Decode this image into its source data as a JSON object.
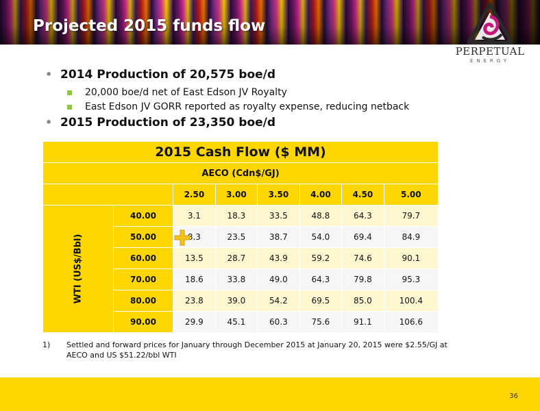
{
  "slide": {
    "title": "Projected 2015 funds flow",
    "page_number": "36",
    "colors": {
      "accent": "#ffd600",
      "bullet_square": "#8ec63f",
      "title_text": "#ffffff"
    }
  },
  "logo": {
    "name": "PERPETUAL",
    "sub": "ENERGY",
    "icon": "triangle-swirl-logo-icon"
  },
  "bullets": [
    {
      "text": "2014 Production of 20,575 boe/d",
      "sub": [
        "20,000 boe/d net of East Edson JV Royalty",
        "East Edson JV GORR reported as royalty expense, reducing netback"
      ]
    },
    {
      "text": "2015 Production of 23,350 boe/d",
      "sub": []
    }
  ],
  "table": {
    "title": "2015 Cash Flow ($ MM)",
    "aeco_label": "AECO (Cdn$/GJ)",
    "wti_label": "WTI (US$/Bbl)",
    "aeco_values": [
      "2.50",
      "3.00",
      "3.50",
      "4.00",
      "4.50",
      "5.00"
    ],
    "rows": [
      {
        "wti": "40.00",
        "values": [
          "3.1",
          "18.3",
          "33.5",
          "48.8",
          "64.3",
          "79.7"
        ]
      },
      {
        "wti": "50.00",
        "values": [
          "8.3",
          "23.5",
          "38.7",
          "54.0",
          "69.4",
          "84.9"
        ]
      },
      {
        "wti": "60.00",
        "values": [
          "13.5",
          "28.7",
          "43.9",
          "59.2",
          "74.6",
          "90.1"
        ]
      },
      {
        "wti": "70.00",
        "values": [
          "18.6",
          "33.8",
          "49.0",
          "64.3",
          "79.8",
          "95.3"
        ]
      },
      {
        "wti": "80.00",
        "values": [
          "23.8",
          "39.0",
          "54.2",
          "69.5",
          "85.0",
          "100.4"
        ]
      },
      {
        "wti": "90.00",
        "values": [
          "29.9",
          "45.1",
          "60.3",
          "75.6",
          "91.1",
          "106.6"
        ]
      }
    ]
  },
  "footnote": {
    "number": "1)",
    "text": "Settled and forward prices for January through December 2015  at January  20, 2015 were $2.55/GJ at AECO and US $51.22/bbl WTI"
  }
}
